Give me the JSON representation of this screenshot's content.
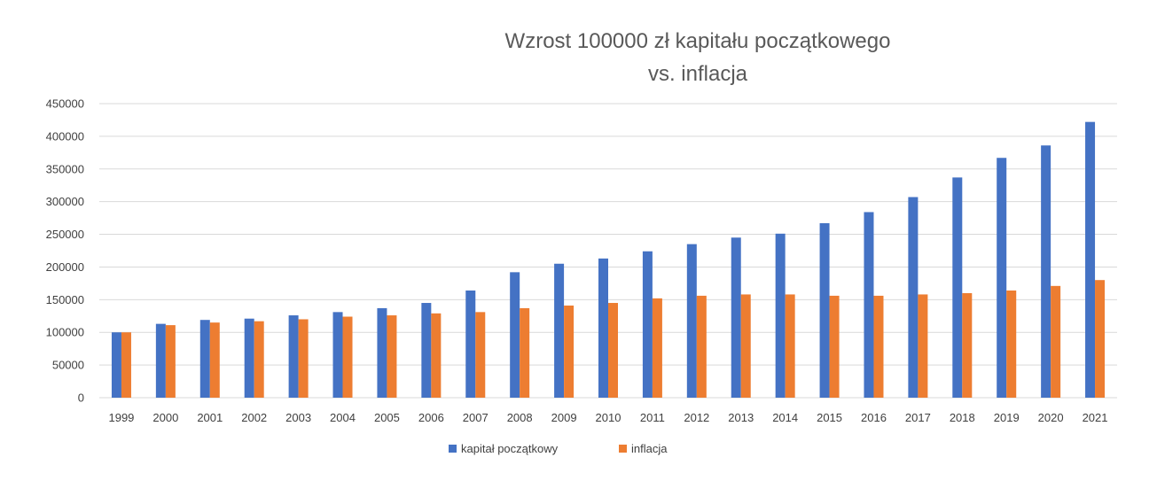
{
  "chart_data": {
    "type": "bar",
    "title": [
      "Wzrost 100000 zł kapitału początkowego",
      "vs. inflacja"
    ],
    "xlabel": "",
    "ylabel": "",
    "ylim": [
      0,
      450000
    ],
    "yticks": [
      "0",
      "50000",
      "100000",
      "150000",
      "200000",
      "250000",
      "300000",
      "350000",
      "400000",
      "450000"
    ],
    "grid": true,
    "legend_position": "bottom",
    "categories": [
      "1999",
      "2000",
      "2001",
      "2002",
      "2003",
      "2004",
      "2005",
      "2006",
      "2007",
      "2008",
      "2009",
      "2010",
      "2011",
      "2012",
      "2013",
      "2014",
      "2015",
      "2016",
      "2017",
      "2018",
      "2019",
      "2020",
      "2021"
    ],
    "series": [
      {
        "name": "kapitał początkowy",
        "color": "#4472c4",
        "values": [
          100000,
          113000,
          119000,
          121000,
          126000,
          131000,
          137000,
          145000,
          164000,
          192000,
          205000,
          213000,
          224000,
          235000,
          245000,
          251000,
          267000,
          284000,
          307000,
          337000,
          367000,
          386000,
          422000
        ]
      },
      {
        "name": "inflacja",
        "color": "#ed7d31",
        "values": [
          100000,
          111000,
          115000,
          117000,
          120000,
          124000,
          126000,
          129000,
          131000,
          137000,
          141000,
          145000,
          152000,
          156000,
          158000,
          158000,
          156000,
          156000,
          158000,
          160000,
          164000,
          171000,
          180000
        ]
      }
    ]
  }
}
